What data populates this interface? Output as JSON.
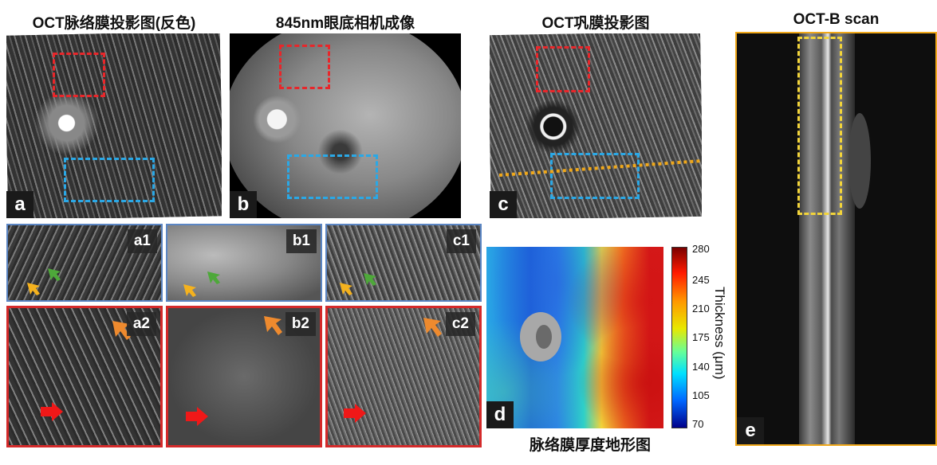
{
  "titles": {
    "a": "OCT脉络膜投影图(反色)",
    "b": "845nm眼底相机成像",
    "c": "OCT巩膜投影图",
    "e": "OCT-B scan",
    "d": "脉络膜厚度地形图"
  },
  "panel_letters": {
    "a": "a",
    "b": "b",
    "c": "c",
    "d": "d",
    "e": "e"
  },
  "inset_tags": {
    "a1": "a1",
    "b1": "b1",
    "c1": "c1",
    "a2": "a2",
    "b2": "b2",
    "c2": "c2"
  },
  "colorbar": {
    "label": "Thickness (μm)",
    "ticks": [
      "280",
      "245",
      "210",
      "175",
      "140",
      "105",
      "70"
    ]
  },
  "colors": {
    "red_box": "#e8262a",
    "blue_box": "#2aa8e6",
    "yellow_box": "#f2d43a",
    "orange_frame": "#f0a81a",
    "blue_frame": "#5b86c4",
    "red_frame": "#d42a2a",
    "arrow_yellow": "#f5b21e",
    "arrow_green": "#4ea83a",
    "arrow_orange": "#ee8a2e",
    "arrow_red": "#f01818"
  }
}
